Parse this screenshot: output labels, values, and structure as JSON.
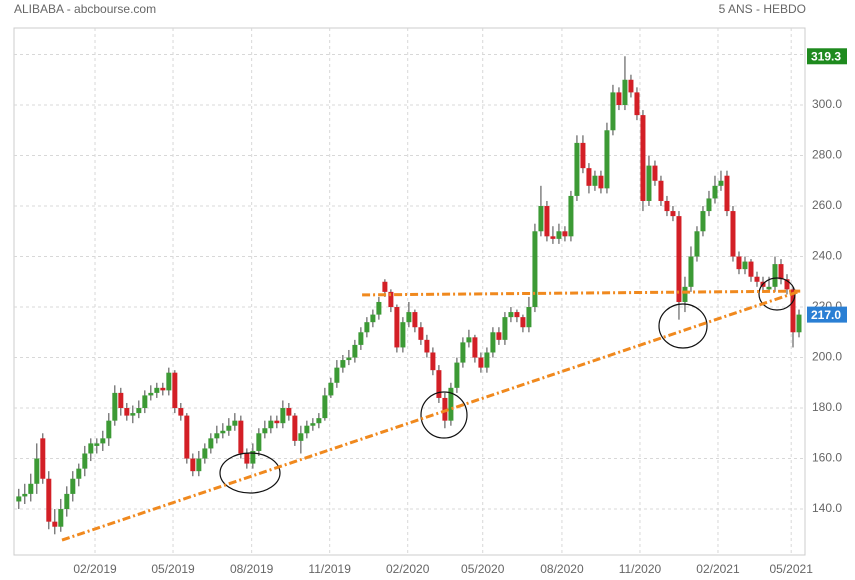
{
  "chart_data": {
    "type": "candlestick",
    "title": "ALIBABA - abcbourse.com",
    "subtitle": "5 ANS - HEBDO",
    "up_color": "#3c9a35",
    "down_color": "#d31f26",
    "grid": true,
    "xlim": [
      -0.8,
      131
    ],
    "ylim": [
      121.8,
      330.5
    ],
    "xticks": [
      {
        "value": 12.7,
        "label": "02/2019"
      },
      {
        "value": 25.7,
        "label": "05/2019"
      },
      {
        "value": 38.8,
        "label": "08/2019"
      },
      {
        "value": 51.8,
        "label": "11/2019"
      },
      {
        "value": 64.8,
        "label": "02/2020"
      },
      {
        "value": 77.3,
        "label": "05/2020"
      },
      {
        "value": 90.5,
        "label": "08/2020"
      },
      {
        "value": 103.5,
        "label": "11/2020"
      },
      {
        "value": 116.5,
        "label": "02/2021"
      },
      {
        "value": 128.7,
        "label": "05/2021"
      }
    ],
    "yticks": [
      {
        "value": 140,
        "label": "140.0"
      },
      {
        "value": 160,
        "label": "160.0"
      },
      {
        "value": 180,
        "label": "180.0"
      },
      {
        "value": 200,
        "label": "200.0"
      },
      {
        "value": 220,
        "label": "220.0"
      },
      {
        "value": 240,
        "label": "240.0"
      },
      {
        "value": 260,
        "label": "260.0"
      },
      {
        "value": 280,
        "label": "280.0"
      },
      {
        "value": 300,
        "label": "300.0"
      },
      {
        "value": 320,
        "label": "320.0"
      }
    ],
    "x": [
      0,
      1,
      2,
      3,
      4,
      5,
      6,
      7,
      8,
      9,
      10,
      11,
      12,
      13,
      14,
      15,
      16,
      17,
      18,
      19,
      20,
      21,
      22,
      23,
      24,
      25,
      26,
      27,
      28,
      29,
      30,
      31,
      32,
      33,
      34,
      35,
      36,
      37,
      38,
      39,
      40,
      41,
      42,
      43,
      44,
      45,
      46,
      47,
      48,
      49,
      50,
      51,
      52,
      53,
      54,
      55,
      56,
      57,
      58,
      59,
      60,
      61,
      62,
      63,
      64,
      65,
      66,
      67,
      68,
      69,
      70,
      71,
      72,
      73,
      74,
      75,
      76,
      77,
      78,
      79,
      80,
      81,
      82,
      83,
      84,
      85,
      86,
      87,
      88,
      89,
      90,
      91,
      92,
      93,
      94,
      95,
      96,
      97,
      98,
      99,
      100,
      101,
      102,
      103,
      104,
      105,
      106,
      107,
      108,
      109,
      110,
      111,
      112,
      113,
      114,
      115,
      116,
      117,
      118,
      119,
      120,
      121,
      122,
      123,
      124,
      125,
      126,
      127,
      128,
      129,
      130
    ],
    "candles": [
      [
        143,
        148,
        140,
        145
      ],
      [
        145,
        150,
        142,
        146
      ],
      [
        146,
        154,
        143,
        150
      ],
      [
        150,
        166,
        146,
        160
      ],
      [
        168,
        170,
        150,
        152
      ],
      [
        152,
        155,
        132,
        135
      ],
      [
        135,
        140,
        130,
        133
      ],
      [
        133,
        144,
        131,
        140
      ],
      [
        140,
        149,
        137,
        146
      ],
      [
        146,
        155,
        143,
        152
      ],
      [
        152,
        158,
        149,
        156
      ],
      [
        156,
        165,
        153,
        162
      ],
      [
        162,
        168,
        159,
        166
      ],
      [
        165,
        168,
        162,
        166
      ],
      [
        166,
        171,
        163,
        168
      ],
      [
        168,
        178,
        165,
        175
      ],
      [
        175,
        189,
        173,
        186
      ],
      [
        186,
        188,
        177,
        180
      ],
      [
        180,
        182,
        175,
        177
      ],
      [
        177,
        181,
        174,
        178
      ],
      [
        178,
        183,
        176,
        180
      ],
      [
        180,
        187,
        178,
        185
      ],
      [
        185,
        189,
        183,
        186
      ],
      [
        186,
        190,
        184,
        188
      ],
      [
        188,
        190,
        185,
        187
      ],
      [
        187,
        196,
        185,
        194
      ],
      [
        194,
        195,
        178,
        180
      ],
      [
        180,
        182,
        175,
        177
      ],
      [
        177,
        178,
        158,
        160
      ],
      [
        160,
        162,
        153,
        155
      ],
      [
        155,
        163,
        153,
        160
      ],
      [
        160,
        166,
        158,
        164
      ],
      [
        164,
        170,
        162,
        168
      ],
      [
        168,
        173,
        166,
        170
      ],
      [
        170,
        174,
        168,
        171
      ],
      [
        171,
        176,
        169,
        173
      ],
      [
        173,
        178,
        171,
        175
      ],
      [
        175,
        177,
        160,
        162
      ],
      [
        162,
        164,
        156,
        158
      ],
      [
        158,
        166,
        156,
        163
      ],
      [
        163,
        172,
        161,
        170
      ],
      [
        170,
        175,
        168,
        172
      ],
      [
        172,
        177,
        170,
        175
      ],
      [
        175,
        177,
        172,
        174
      ],
      [
        174,
        183,
        172,
        180
      ],
      [
        180,
        182,
        175,
        177
      ],
      [
        177,
        178,
        165,
        167
      ],
      [
        167,
        173,
        162,
        170
      ],
      [
        170,
        175,
        168,
        173
      ],
      [
        173,
        176,
        171,
        174
      ],
      [
        174,
        178,
        172,
        176
      ],
      [
        176,
        188,
        175,
        185
      ],
      [
        185,
        192,
        184,
        190
      ],
      [
        190,
        199,
        188,
        196
      ],
      [
        196,
        201,
        194,
        199
      ],
      [
        199,
        203,
        197,
        200
      ],
      [
        200,
        207,
        198,
        205
      ],
      [
        205,
        212,
        203,
        210
      ],
      [
        210,
        216,
        208,
        214
      ],
      [
        214,
        219,
        212,
        217
      ],
      [
        217,
        224,
        215,
        222
      ],
      [
        230,
        231,
        224,
        226
      ],
      [
        226,
        227,
        218,
        220
      ],
      [
        220,
        221,
        202,
        204
      ],
      [
        204,
        216,
        202,
        214
      ],
      [
        214,
        222,
        212,
        218
      ],
      [
        218,
        219,
        210,
        212
      ],
      [
        212,
        214,
        205,
        207
      ],
      [
        207,
        209,
        200,
        202
      ],
      [
        202,
        204,
        193,
        195
      ],
      [
        195,
        197,
        182,
        184
      ],
      [
        184,
        186,
        172,
        175
      ],
      [
        175,
        190,
        173,
        188
      ],
      [
        188,
        200,
        186,
        198
      ],
      [
        198,
        208,
        196,
        206
      ],
      [
        206,
        211,
        204,
        208
      ],
      [
        208,
        209,
        198,
        200
      ],
      [
        200,
        202,
        194,
        196
      ],
      [
        196,
        204,
        194,
        202
      ],
      [
        202,
        212,
        200,
        210
      ],
      [
        210,
        212,
        205,
        207
      ],
      [
        207,
        218,
        205,
        216
      ],
      [
        216,
        220,
        214,
        218
      ],
      [
        218,
        219,
        214,
        216
      ],
      [
        216,
        217,
        210,
        212
      ],
      [
        212,
        224,
        210,
        220
      ],
      [
        220,
        253,
        218,
        250
      ],
      [
        250,
        268,
        248,
        260
      ],
      [
        260,
        262,
        246,
        248
      ],
      [
        248,
        252,
        245,
        247
      ],
      [
        247,
        253,
        245,
        250
      ],
      [
        250,
        252,
        246,
        248
      ],
      [
        248,
        266,
        246,
        264
      ],
      [
        264,
        288,
        262,
        285
      ],
      [
        285,
        288,
        273,
        275
      ],
      [
        275,
        277,
        265,
        268
      ],
      [
        268,
        274,
        266,
        272
      ],
      [
        272,
        274,
        265,
        267
      ],
      [
        267,
        293,
        265,
        290
      ],
      [
        290,
        308,
        288,
        305
      ],
      [
        305,
        307,
        298,
        300
      ],
      [
        300,
        319.3,
        298,
        310
      ],
      [
        310,
        312,
        303,
        305
      ],
      [
        305,
        307,
        294,
        296
      ],
      [
        296,
        298,
        258,
        262
      ],
      [
        262,
        280,
        260,
        276
      ],
      [
        276,
        278,
        268,
        270
      ],
      [
        270,
        272,
        260,
        262
      ],
      [
        262,
        264,
        256,
        258
      ],
      [
        258,
        260,
        254,
        256
      ],
      [
        256,
        258,
        215,
        222
      ],
      [
        222,
        232,
        218,
        228
      ],
      [
        228,
        244,
        226,
        240
      ],
      [
        240,
        252,
        238,
        250
      ],
      [
        250,
        260,
        248,
        258
      ],
      [
        258,
        266,
        256,
        263
      ],
      [
        263,
        272,
        261,
        268
      ],
      [
        268,
        274,
        266,
        270
      ],
      [
        272,
        274,
        256,
        258
      ],
      [
        258,
        260,
        238,
        240
      ],
      [
        240,
        242,
        233,
        235
      ],
      [
        235,
        240,
        233,
        238
      ],
      [
        238,
        239,
        230,
        232
      ],
      [
        232,
        234,
        228,
        230
      ],
      [
        230,
        232,
        226,
        228
      ],
      [
        227,
        232,
        226,
        228
      ],
      [
        228,
        240,
        226,
        237
      ],
      [
        237,
        239,
        229,
        231
      ],
      [
        231,
        233,
        225,
        227
      ],
      [
        227,
        228,
        204,
        210
      ],
      [
        210,
        219,
        208,
        217
      ]
    ],
    "price_labels": [
      {
        "value": 319.3,
        "label": "319.3",
        "color": "#1e8a1e"
      },
      {
        "value": 217,
        "label": "217.0",
        "color": "#2a7fd4"
      }
    ],
    "trendlines": [
      {
        "x": [
          7.2,
          130.2
        ],
        "y": [
          127.7,
          226.3
        ],
        "color": "#f0891e"
      },
      {
        "x": [
          57.2,
          130.2
        ],
        "y": [
          224.8,
          226.3
        ],
        "color": "#f0891e"
      }
    ]
  }
}
